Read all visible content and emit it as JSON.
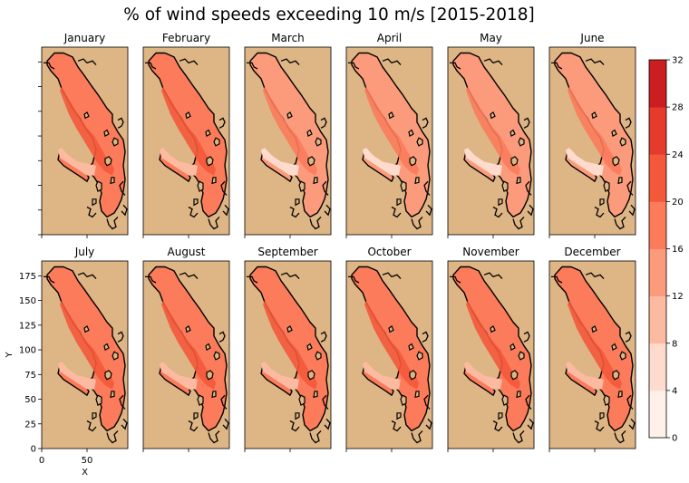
{
  "chart_data": {
    "type": "heatmap",
    "title": "% of wind speeds exceeding 10 m/s [2015-2018]",
    "xlabel": "X",
    "ylabel": "Y",
    "xlim": [
      0,
      95
    ],
    "ylim": [
      0,
      190
    ],
    "x_ticks": [
      0,
      50
    ],
    "y_ticks": [
      0,
      25,
      50,
      75,
      100,
      125,
      150,
      175
    ],
    "colorbar": {
      "min": 0,
      "max": 32,
      "ticks": [
        0,
        4,
        8,
        12,
        16,
        20,
        24,
        28,
        32
      ],
      "colors": [
        "#fff1ea",
        "#fedbcc",
        "#fcbba1",
        "#fc9b7c",
        "#fb7b5b",
        "#f4583a",
        "#e43b2c",
        "#ca1e20"
      ]
    },
    "land_color": "#deb585",
    "panels": [
      {
        "month": "January",
        "channel_pct": 16,
        "inlet_pct": 8,
        "max_pct": 20
      },
      {
        "month": "February",
        "channel_pct": 16,
        "inlet_pct": 8,
        "max_pct": 20
      },
      {
        "month": "March",
        "channel_pct": 15,
        "inlet_pct": 7,
        "max_pct": 19
      },
      {
        "month": "April",
        "channel_pct": 14,
        "inlet_pct": 7,
        "max_pct": 18
      },
      {
        "month": "May",
        "channel_pct": 12,
        "inlet_pct": 5,
        "max_pct": 17
      },
      {
        "month": "June",
        "channel_pct": 12,
        "inlet_pct": 5,
        "max_pct": 17
      },
      {
        "month": "July",
        "channel_pct": 16,
        "inlet_pct": 9,
        "max_pct": 21
      },
      {
        "month": "August",
        "channel_pct": 16,
        "inlet_pct": 9,
        "max_pct": 21
      },
      {
        "month": "September",
        "channel_pct": 16,
        "inlet_pct": 9,
        "max_pct": 21
      },
      {
        "month": "October",
        "channel_pct": 16,
        "inlet_pct": 8,
        "max_pct": 20
      },
      {
        "month": "November",
        "channel_pct": 16,
        "inlet_pct": 8,
        "max_pct": 20
      },
      {
        "month": "December",
        "channel_pct": 16,
        "inlet_pct": 8,
        "max_pct": 20
      }
    ]
  }
}
